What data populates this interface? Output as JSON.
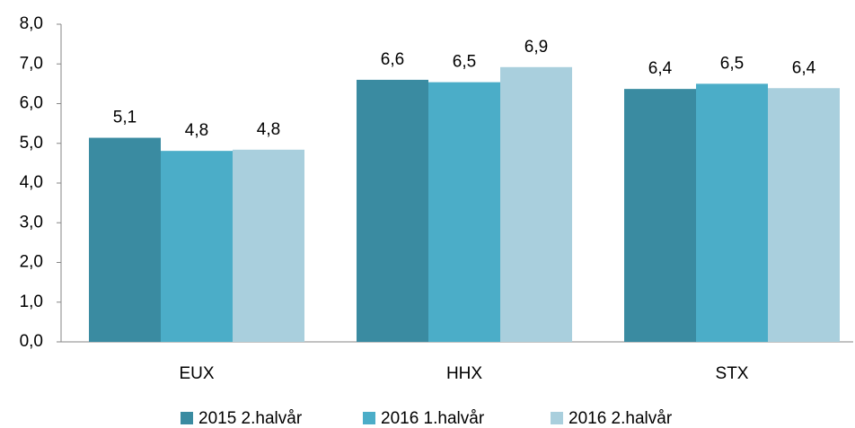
{
  "chart_data": {
    "type": "bar",
    "categories": [
      "EUX",
      "HHX",
      "STX"
    ],
    "series": [
      {
        "name": "2015 2.halvår",
        "color": "#3a8ba1",
        "values": [
          5.14,
          6.6,
          6.37
        ],
        "value_labels": [
          "5,1",
          "6,6",
          "6,4"
        ]
      },
      {
        "name": "2016 1.halvår",
        "color": "#4badc8",
        "values": [
          4.81,
          6.54,
          6.5
        ],
        "value_labels": [
          "4,8",
          "6,5",
          "6,5"
        ]
      },
      {
        "name": "2016 2.halvår",
        "color": "#a9cfdd",
        "values": [
          4.84,
          6.92,
          6.39
        ],
        "value_labels": [
          "4,8",
          "6,9",
          "6,4"
        ]
      }
    ],
    "ylim": [
      0,
      8
    ],
    "yticks": [
      {
        "value": 0,
        "label": "0,0"
      },
      {
        "value": 1,
        "label": "1,0"
      },
      {
        "value": 2,
        "label": "2,0"
      },
      {
        "value": 3,
        "label": "3,0"
      },
      {
        "value": 4,
        "label": "4,0"
      },
      {
        "value": 5,
        "label": "5,0"
      },
      {
        "value": 6,
        "label": "6,0"
      },
      {
        "value": 7,
        "label": "7,0"
      },
      {
        "value": 8,
        "label": "8,0"
      }
    ],
    "legend": "bottom"
  }
}
